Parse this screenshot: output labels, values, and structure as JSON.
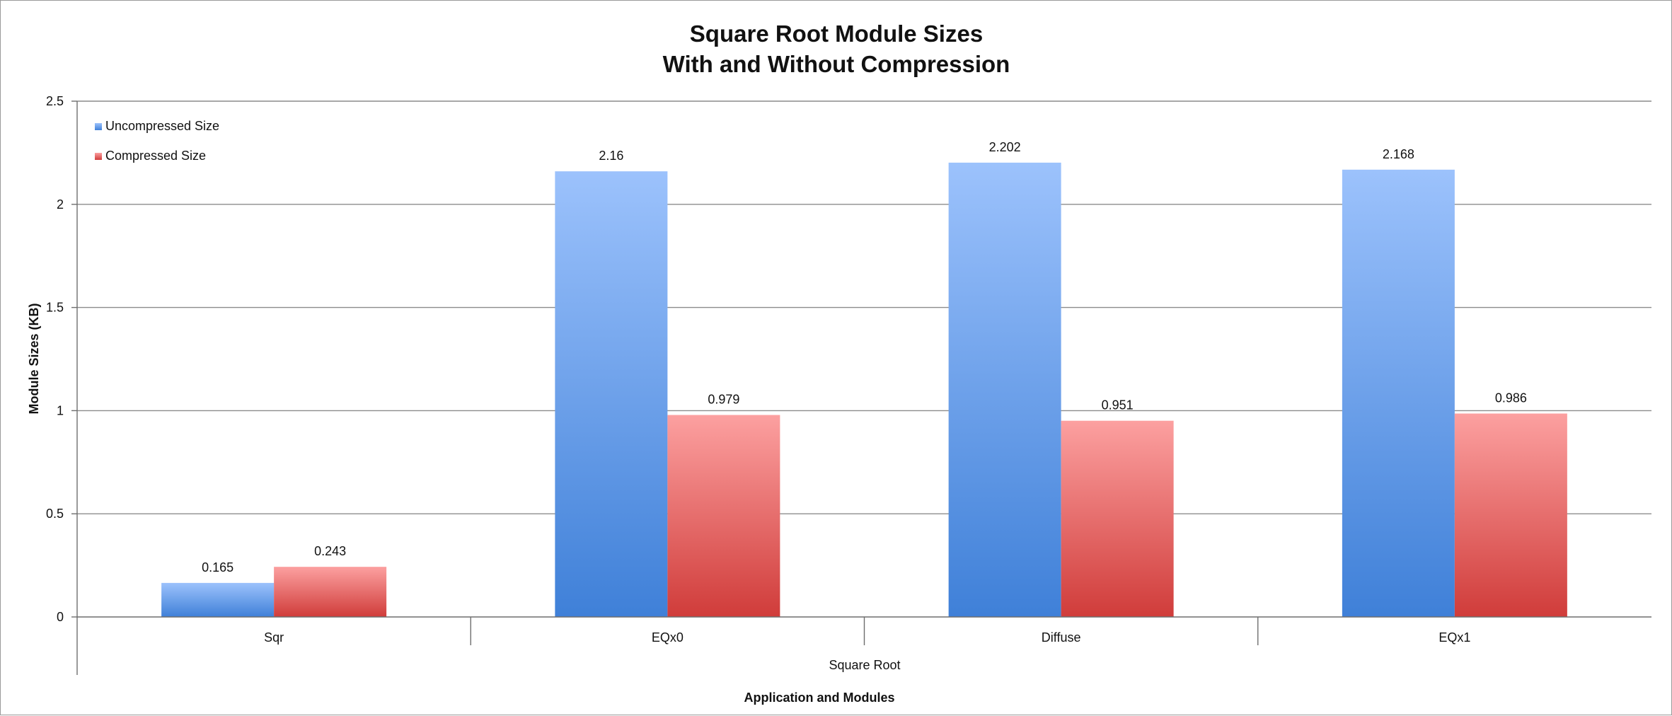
{
  "chart_data": {
    "type": "bar",
    "title": "Square Root Module Sizes",
    "subtitle": "With and Without Compression",
    "categories": [
      "Sqr",
      "EQx0",
      "Diffuse",
      "EQx1"
    ],
    "group_label": "Square Root",
    "xlabel": "Application and Modules",
    "ylabel": "Module Sizes (KB)",
    "ylim": [
      0,
      2.5
    ],
    "yticks": [
      0,
      0.5,
      1,
      1.5,
      2,
      2.5
    ],
    "ytick_labels": [
      "0",
      "0.5",
      "1",
      "1.5",
      "2",
      "2.5"
    ],
    "grid": true,
    "legend_position": "top-left",
    "series": [
      {
        "name": "Uncompressed Size",
        "values": [
          0.165,
          2.16,
          2.202,
          2.168
        ],
        "labels": [
          "0.165",
          "2.16",
          "2.202",
          "2.168"
        ],
        "color_top": "#9cc2fc",
        "color_bottom": "#3f80d8"
      },
      {
        "name": "Compressed Size",
        "values": [
          0.243,
          0.979,
          0.951,
          0.986
        ],
        "labels": [
          "0.243",
          "0.979",
          "0.951",
          "0.986"
        ],
        "color_top": "#fca0a0",
        "color_bottom": "#d03c3a"
      }
    ]
  }
}
